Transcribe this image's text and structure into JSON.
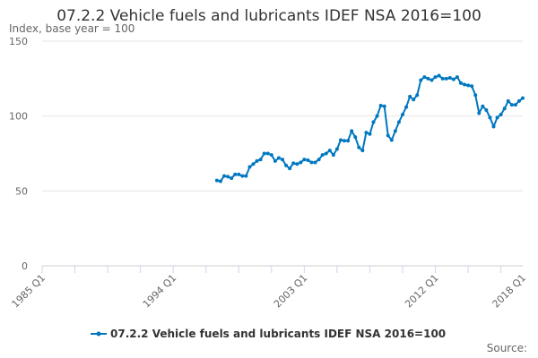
{
  "chart_data": {
    "type": "line",
    "title": "07.2.2 Vehicle fuels and lubricants IDEF NSA 2016=100",
    "ylabel": "Index, base year = 100",
    "source_label": "Source:",
    "ylim": [
      0,
      150
    ],
    "yticks": [
      0,
      50,
      100,
      150
    ],
    "xlim": [
      "1985 Q1",
      "2018 Q1"
    ],
    "xticks": [
      "1985 Q1",
      "1994 Q1",
      "2003 Q1",
      "2012 Q1",
      "2018 Q1"
    ],
    "grid": "horizontal",
    "legend_position": "bottom",
    "color": "#0077c0",
    "series": [
      {
        "name": "07.2.2 Vehicle fuels and lubricants IDEF NSA 2016=100",
        "start": "1997 Q1",
        "values": [
          57,
          56.5,
          60,
          59.5,
          58.5,
          61,
          61,
          60,
          60,
          66,
          68,
          70,
          71,
          75,
          75,
          74,
          70,
          72,
          71,
          67,
          65,
          68.5,
          68,
          69,
          71,
          70.5,
          69,
          69,
          71,
          74,
          75,
          77,
          74,
          78,
          84,
          83.5,
          83.5,
          90,
          86,
          79,
          77,
          89,
          88,
          96,
          100,
          107,
          106.5,
          87,
          84,
          90,
          96,
          101,
          106,
          113,
          111,
          114,
          124,
          126,
          125,
          124,
          126,
          127,
          125,
          125,
          125.5,
          124.5,
          126,
          122,
          121,
          120.5,
          120,
          114,
          102,
          106.5,
          104,
          99,
          93,
          99,
          101,
          105,
          110,
          107.5,
          107.5,
          110,
          112
        ]
      }
    ]
  }
}
